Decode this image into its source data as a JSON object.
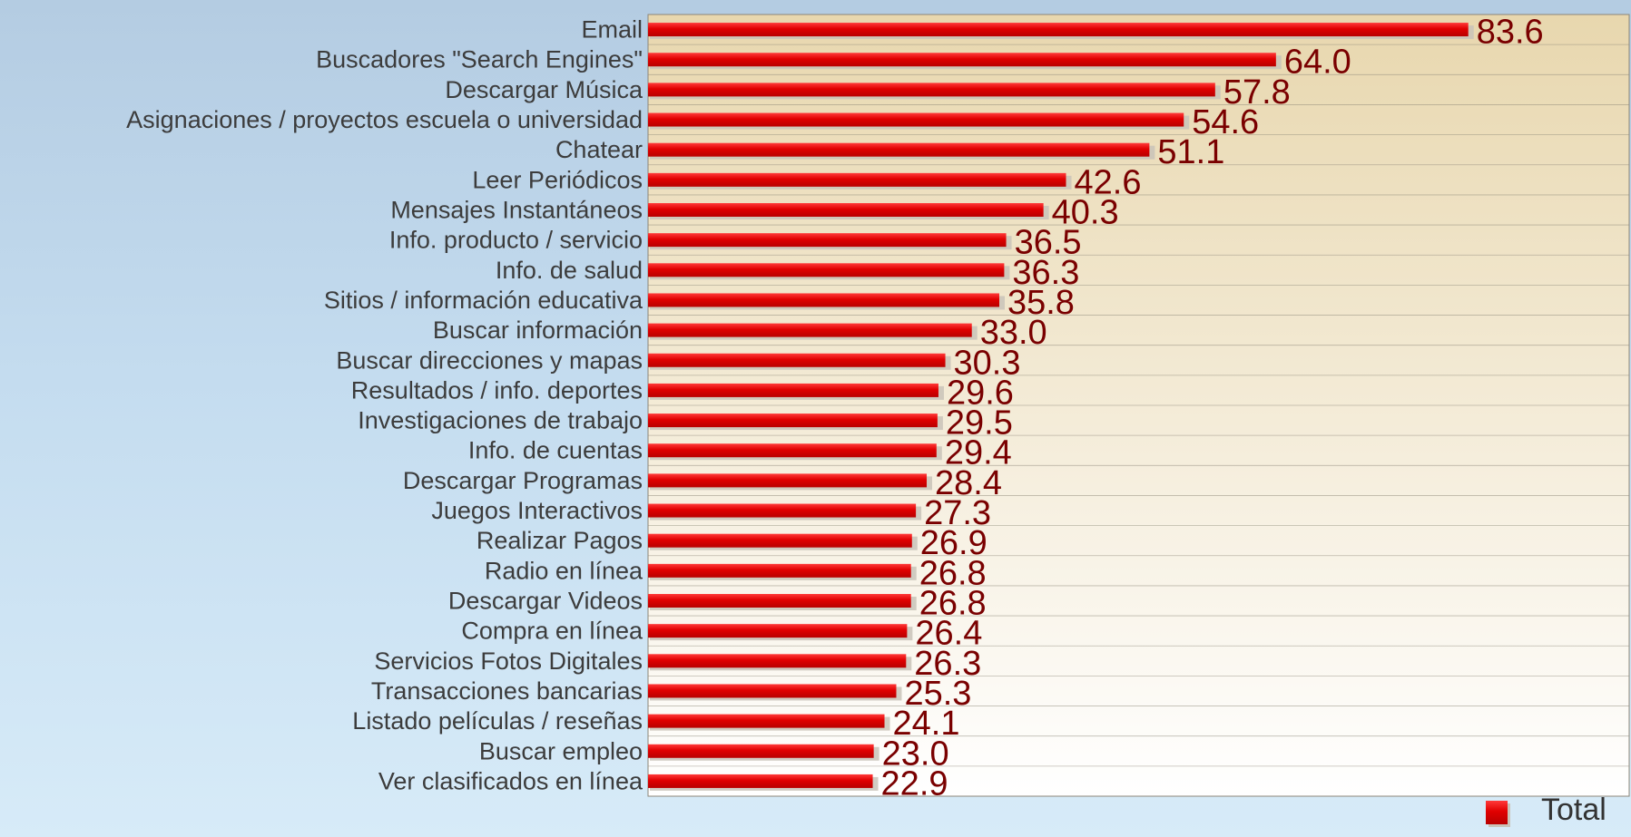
{
  "chart_data": {
    "type": "bar",
    "orientation": "horizontal",
    "categories": [
      "Email",
      "Buscadores \"Search Engines\"",
      "Descargar Música",
      "Asignaciones / proyectos escuela o universidad",
      "Chatear",
      "Leer Periódicos",
      "Mensajes Instantáneos",
      "Info. producto / servicio",
      "Info. de salud",
      "Sitios / información educativa",
      "Buscar información",
      "Buscar direcciones y mapas",
      "Resultados / info. deportes",
      "Investigaciones de trabajo",
      "Info. de cuentas",
      "Descargar Programas",
      "Juegos Interactivos",
      "Realizar Pagos",
      "Radio en línea",
      "Descargar Videos",
      "Compra en línea",
      "Servicios Fotos Digitales",
      "Transacciones bancarias",
      "Listado películas / reseñas",
      "Buscar empleo",
      "Ver clasificados en línea"
    ],
    "series": [
      {
        "name": "Total",
        "color": "#e00000",
        "values": [
          83.6,
          64.0,
          57.8,
          54.6,
          51.1,
          42.6,
          40.3,
          36.5,
          36.3,
          35.8,
          33.0,
          30.3,
          29.6,
          29.5,
          29.4,
          28.4,
          27.3,
          26.9,
          26.8,
          26.8,
          26.4,
          26.3,
          25.3,
          24.1,
          23.0,
          22.9
        ]
      }
    ],
    "value_labels": [
      "83.6",
      "64.0",
      "57.8",
      "54.6",
      "51.1",
      "42.6",
      "40.3",
      "36.5",
      "36.3",
      "35.8",
      "33.0",
      "30.3",
      "29.6",
      "29.5",
      "29.4",
      "28.4",
      "27.3",
      "26.9",
      "26.8",
      "26.8",
      "26.4",
      "26.3",
      "25.3",
      "24.1",
      "23.0",
      "22.9"
    ],
    "xlim": [
      0,
      100
    ],
    "grid": true,
    "legend_position": "bottom-right",
    "colors": {
      "bar": "#e00000",
      "bar_highlight": "#ff3a3a",
      "bar_shadow": "#c9c3b8",
      "value_label": "#7a0000",
      "category_label": "#3c3c3c",
      "plot_top": "#e8d7ae",
      "plot_bottom": "#ffffff",
      "grid": "#8c8678"
    }
  }
}
